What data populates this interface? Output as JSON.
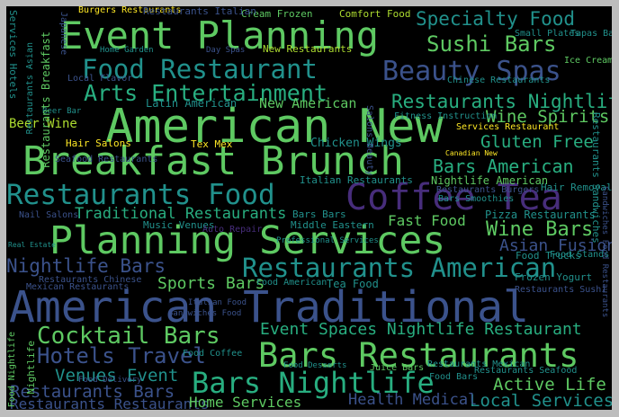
{
  "palette": {
    "background": "#000000",
    "frame": "#bdbdbd",
    "green": "#5ec962",
    "teal": "#21918c",
    "blue": "#3b528b",
    "purple": "#472d7b",
    "yellow": "#fde725",
    "lime": "#addc30",
    "cyan": "#28ae80"
  },
  "words": [
    {
      "text": "Event Planning",
      "color": "#5ec962"
    },
    {
      "text": "Specialty Food",
      "color": "#21918c"
    },
    {
      "text": "Sushi Bars",
      "color": "#5ec962"
    },
    {
      "text": "Food Restaurant",
      "color": "#21918c"
    },
    {
      "text": "Beauty Spas",
      "color": "#3b528b"
    },
    {
      "text": "Arts Entertainment",
      "color": "#28ae80"
    },
    {
      "text": "Restaurants Nightlife",
      "color": "#28ae80"
    },
    {
      "text": "American New",
      "color": "#5ec962"
    },
    {
      "text": "Wine Spirits",
      "color": "#5ec962"
    },
    {
      "text": "Gluten Free",
      "color": "#28ae80"
    },
    {
      "text": "Breakfast Brunch",
      "color": "#5ec962"
    },
    {
      "text": "Bars American",
      "color": "#28ae80"
    },
    {
      "text": "Restaurants Food",
      "color": "#21918c"
    },
    {
      "text": "Coffee Tea",
      "color": "#472d7b"
    },
    {
      "text": "Traditional Restaurants",
      "color": "#28ae80"
    },
    {
      "text": "Wine Bars",
      "color": "#5ec962"
    },
    {
      "text": "Asian Fusion",
      "color": "#3b528b"
    },
    {
      "text": "Planning Services",
      "color": "#5ec962"
    },
    {
      "text": "Nightlife Bars",
      "color": "#3b528b"
    },
    {
      "text": "Restaurants American",
      "color": "#21918c"
    },
    {
      "text": "Sports Bars",
      "color": "#5ec962"
    },
    {
      "text": "American Traditional",
      "color": "#3b528b"
    },
    {
      "text": "Cocktail Bars",
      "color": "#5ec962"
    },
    {
      "text": "Event Spaces Nightlife Restaurant",
      "color": "#28ae80"
    },
    {
      "text": "Hotels Travel",
      "color": "#3b528b"
    },
    {
      "text": "Bars Restaurants",
      "color": "#5ec962"
    },
    {
      "text": "Venues Event",
      "color": "#21918c"
    },
    {
      "text": "Bars Nightlife",
      "color": "#28ae80"
    },
    {
      "text": "Active Life",
      "color": "#5ec962"
    },
    {
      "text": "Restaurants Bars",
      "color": "#3b528b"
    },
    {
      "text": "Local Services",
      "color": "#21918c"
    },
    {
      "text": "Health Medical",
      "color": "#3b528b"
    },
    {
      "text": "Restaurants Restaurants",
      "color": "#3b528b"
    },
    {
      "text": "Home Services",
      "color": "#5ec962"
    },
    {
      "text": "Beer Wine",
      "color": "#addc30"
    },
    {
      "text": "Hair Salons",
      "color": "#fde725"
    },
    {
      "text": "Tex Mex",
      "color": "#fde725"
    },
    {
      "text": "Chicken Wings",
      "color": "#21918c"
    },
    {
      "text": "Fast Food",
      "color": "#5ec962"
    },
    {
      "text": "Pizza Restaurants",
      "color": "#21918c"
    },
    {
      "text": "Music Venues",
      "color": "#21918c"
    },
    {
      "text": "Bars Bars",
      "color": "#21918c"
    },
    {
      "text": "Middle Eastern",
      "color": "#21918c"
    },
    {
      "text": "Italian Restaurants",
      "color": "#21918c"
    },
    {
      "text": "New American",
      "color": "#5ec962"
    },
    {
      "text": "Latin American",
      "color": "#21918c"
    },
    {
      "text": "New Restaurants",
      "color": "#addc30"
    },
    {
      "text": "Cream Frozen",
      "color": "#5ec962"
    },
    {
      "text": "Comfort Food",
      "color": "#addc30"
    },
    {
      "text": "Burgers Restaurants",
      "color": "#fde725"
    },
    {
      "text": "Restaurants Italian",
      "color": "#3b528b"
    },
    {
      "text": "Small Plates",
      "color": "#21918c"
    },
    {
      "text": "Tapas Bars",
      "color": "#21918c"
    },
    {
      "text": "Ice Cream",
      "color": "#5ec962"
    },
    {
      "text": "Home Garden",
      "color": "#21918c"
    },
    {
      "text": "Day Spas",
      "color": "#3b528b"
    },
    {
      "text": "Beer Bar",
      "color": "#21918c"
    },
    {
      "text": "Local Flavor",
      "color": "#3b528b"
    },
    {
      "text": "Fitness Instruction",
      "color": "#21918c"
    },
    {
      "text": "Services Restaurant",
      "color": "#fde725"
    },
    {
      "text": "Canadian New",
      "color": "#fde725"
    },
    {
      "text": "Nightlife American",
      "color": "#5ec962"
    },
    {
      "text": "Hair Removal",
      "color": "#21918c"
    },
    {
      "text": "Bars Smoothies",
      "color": "#21918c"
    },
    {
      "text": "Restaurants Burgers",
      "color": "#3b528b"
    },
    {
      "text": "Chinese Restaurants",
      "color": "#21918c"
    },
    {
      "text": "Food Trucks",
      "color": "#21918c"
    },
    {
      "text": "Food Stands",
      "color": "#21918c"
    },
    {
      "text": "Frozen Yogurt",
      "color": "#21918c"
    },
    {
      "text": "Restaurants Sushi",
      "color": "#3b528b"
    },
    {
      "text": "Professional Services",
      "color": "#21918c"
    },
    {
      "text": "Food American",
      "color": "#21918c"
    },
    {
      "text": "Tea Food",
      "color": "#21918c"
    },
    {
      "text": "Restaurants Chinese",
      "color": "#3b528b"
    },
    {
      "text": "Mexican Restaurants",
      "color": "#3b528b"
    },
    {
      "text": "Food Coffee",
      "color": "#21918c"
    },
    {
      "text": "Food Desserts",
      "color": "#21918c"
    },
    {
      "text": "Juice Bars",
      "color": "#5ec962"
    },
    {
      "text": "Restaurants Mexican",
      "color": "#21918c"
    },
    {
      "text": "Restaurants Seafood",
      "color": "#21918c"
    },
    {
      "text": "Food Bars",
      "color": "#21918c"
    },
    {
      "text": "Food Delivery",
      "color": "#3b528b"
    },
    {
      "text": "Seafood Restaurants",
      "color": "#3b528b"
    },
    {
      "text": "Nail Salons",
      "color": "#3b528b"
    },
    {
      "text": "Real Estate",
      "color": "#21918c"
    },
    {
      "text": "Sandwiches Food",
      "color": "#3b528b"
    },
    {
      "text": "Italian Food",
      "color": "#3b528b"
    },
    {
      "text": "Auto Repair",
      "color": "#472d7b"
    },
    {
      "text": "Services Hotels",
      "color": "#21918c"
    },
    {
      "text": "Restaurants Asian",
      "color": "#21918c"
    },
    {
      "text": "Restaurants Breakfast",
      "color": "#5ec962"
    },
    {
      "text": "Restaurants Sandwiches",
      "color": "#21918c"
    },
    {
      "text": "Food Nightlife",
      "color": "#5ec962"
    },
    {
      "text": "Japanese",
      "color": "#3b528b"
    },
    {
      "text": "Salons Beauty",
      "color": "#3b528b"
    },
    {
      "text": "Sandwiches Food Restaurants",
      "color": "#3b528b"
    },
    {
      "text": "Nightlife",
      "color": "#5ec962"
    }
  ]
}
